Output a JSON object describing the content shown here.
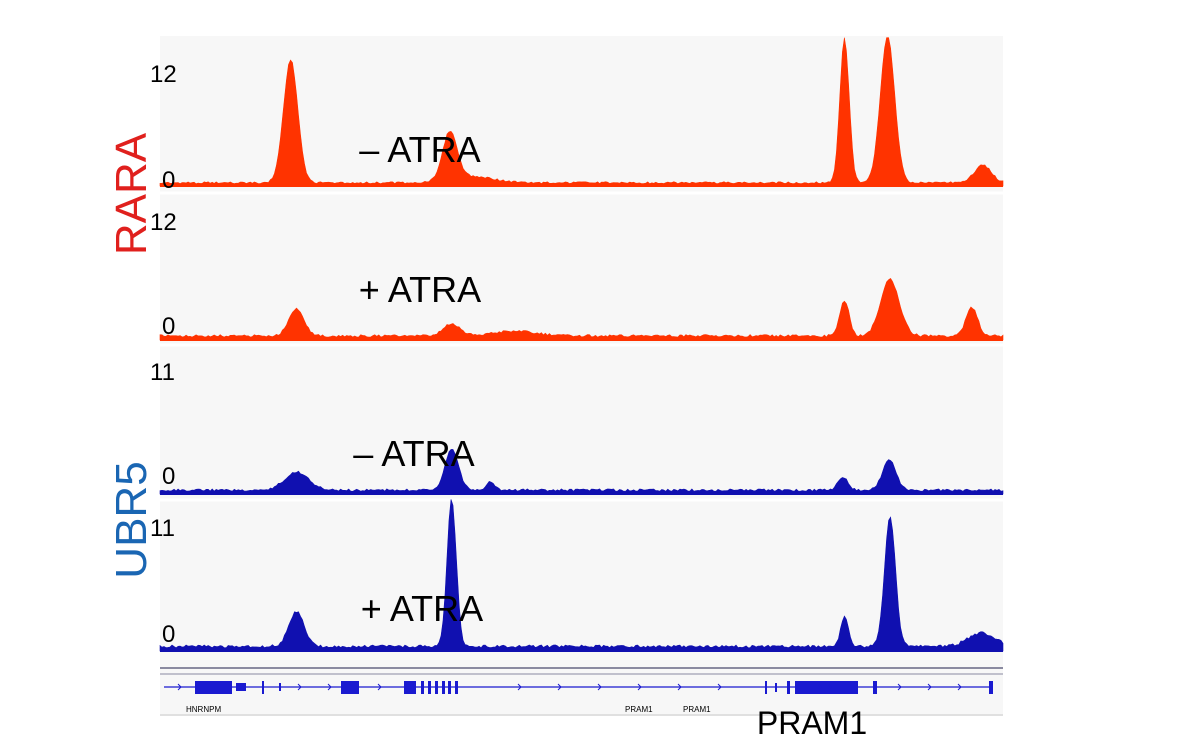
{
  "chart_data": {
    "type": "area",
    "title": "",
    "xlabel": "",
    "ylabel": "",
    "x_range": [
      0,
      100
    ],
    "groups": [
      {
        "name": "RARA",
        "color": "#e0201d",
        "tracks": [
          0,
          1
        ]
      },
      {
        "name": "UBR5",
        "color": "#1a66b3",
        "tracks": [
          2,
          3
        ]
      }
    ],
    "tracks": [
      {
        "name": "RARA − ATRA",
        "label": "– ATRA",
        "ymin_label": "0",
        "ymax_label": "12",
        "ylim": [
          0,
          12
        ],
        "color": "#ff3300",
        "baseline": 0.28,
        "peaks": [
          {
            "x": 15.5,
            "height": 10.4,
            "width": 0.85
          },
          {
            "x": 34.4,
            "height": 4.1,
            "width": 0.85
          },
          {
            "x": 37.0,
            "height": 0.55,
            "width": 2.5
          },
          {
            "x": 81.2,
            "height": 12.2,
            "width": 0.55
          },
          {
            "x": 86.3,
            "height": 12.4,
            "width": 0.85
          },
          {
            "x": 97.6,
            "height": 1.5,
            "width": 1.0
          }
        ]
      },
      {
        "name": "RARA + ATRA",
        "label": "+ ATRA",
        "ymin_label": "0",
        "ymax_label": "12",
        "ylim": [
          0,
          12
        ],
        "color": "#ff3300",
        "baseline": 0.35,
        "peaks": [
          {
            "x": 16.2,
            "height": 2.3,
            "width": 0.9
          },
          {
            "x": 34.6,
            "height": 1.0,
            "width": 1.0
          },
          {
            "x": 42.0,
            "height": 0.4,
            "width": 2.5
          },
          {
            "x": 81.2,
            "height": 3.0,
            "width": 0.55
          },
          {
            "x": 86.6,
            "height": 4.8,
            "width": 1.1
          },
          {
            "x": 96.3,
            "height": 2.4,
            "width": 0.7
          }
        ]
      },
      {
        "name": "UBR5 − ATRA",
        "label": "– ATRA",
        "ymin_label": "0",
        "ymax_label": "11",
        "ylim": [
          0,
          11
        ],
        "color": "#1010b0",
        "baseline": 0.3,
        "peaks": [
          {
            "x": 16.2,
            "height": 1.4,
            "width": 1.4
          },
          {
            "x": 34.6,
            "height": 3.1,
            "width": 0.8
          },
          {
            "x": 39.2,
            "height": 0.6,
            "width": 0.5
          },
          {
            "x": 81.0,
            "height": 1.0,
            "width": 0.6
          },
          {
            "x": 86.5,
            "height": 2.3,
            "width": 0.8
          }
        ]
      },
      {
        "name": "UBR5 + ATRA",
        "label": "+ ATRA",
        "ymin_label": "0",
        "ymax_label": "11",
        "ylim": [
          0,
          11
        ],
        "color": "#1010b0",
        "baseline": 0.35,
        "peaks": [
          {
            "x": 16.2,
            "height": 2.6,
            "width": 0.9
          },
          {
            "x": 34.6,
            "height": 11.1,
            "width": 0.55
          },
          {
            "x": 81.2,
            "height": 2.2,
            "width": 0.45
          },
          {
            "x": 86.6,
            "height": 9.8,
            "width": 0.65
          },
          {
            "x": 97.5,
            "height": 1.0,
            "width": 1.6
          }
        ]
      }
    ],
    "gene_track": {
      "color": "#1a1ad0",
      "genes": [
        {
          "name": "HNRNPM",
          "label_x": 3.0
        },
        {
          "name": "PRAM1",
          "label_x": 56.0
        },
        {
          "name": "PRAM1",
          "label_x": 62.5
        }
      ],
      "highlight_label": "PRAM1"
    }
  }
}
